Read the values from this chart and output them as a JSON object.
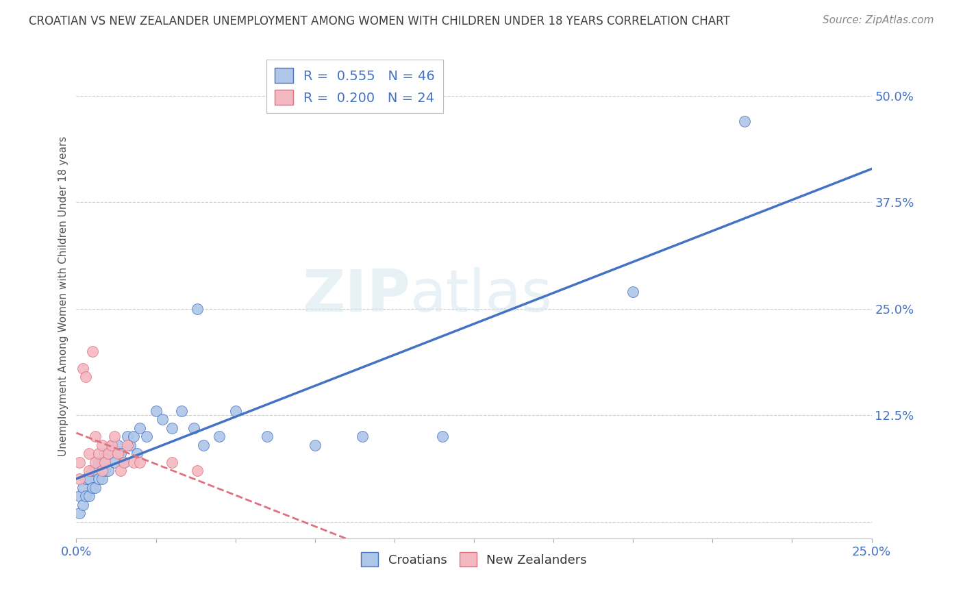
{
  "title": "CROATIAN VS NEW ZEALANDER UNEMPLOYMENT AMONG WOMEN WITH CHILDREN UNDER 18 YEARS CORRELATION CHART",
  "source": "Source: ZipAtlas.com",
  "ylabel": "Unemployment Among Women with Children Under 18 years",
  "xlim": [
    0.0,
    0.25
  ],
  "ylim": [
    -0.02,
    0.55
  ],
  "xticks": [
    0.0,
    0.025,
    0.05,
    0.075,
    0.1,
    0.125,
    0.15,
    0.175,
    0.2,
    0.225,
    0.25
  ],
  "xtick_labels": [
    "0.0%",
    "",
    "",
    "",
    "",
    "",
    "",
    "",
    "",
    "",
    "25.0%"
  ],
  "ytick_positions": [
    0.0,
    0.125,
    0.25,
    0.375,
    0.5
  ],
  "ytick_labels": [
    "",
    "12.5%",
    "25.0%",
    "37.5%",
    "50.0%"
  ],
  "croatian_R": 0.555,
  "croatian_N": 46,
  "nz_R": 0.2,
  "nz_N": 24,
  "croatian_color": "#aec6e8",
  "nz_color": "#f4b8c1",
  "trendline_croatian_color": "#4472c4",
  "trendline_nz_color": "#e07080",
  "watermark_zip": "ZIP",
  "watermark_atlas": "atlas",
  "title_color": "#404040",
  "axis_color": "#4472c4",
  "legend_text_color": "#4472c4",
  "croatian_x": [
    0.001,
    0.002,
    0.002,
    0.003,
    0.004,
    0.004,
    0.005,
    0.005,
    0.006,
    0.006,
    0.007,
    0.007,
    0.008,
    0.008,
    0.009,
    0.009,
    0.01,
    0.01,
    0.011,
    0.012,
    0.013,
    0.014,
    0.015,
    0.015,
    0.016,
    0.017,
    0.018,
    0.019,
    0.02,
    0.022,
    0.025,
    0.027,
    0.03,
    0.032,
    0.035,
    0.04,
    0.042,
    0.045,
    0.05,
    0.055,
    0.065,
    0.075,
    0.09,
    0.11,
    0.175,
    0.21
  ],
  "croatian_y": [
    0.01,
    0.02,
    0.03,
    0.02,
    0.03,
    0.04,
    0.03,
    0.05,
    0.04,
    0.06,
    0.04,
    0.06,
    0.05,
    0.07,
    0.05,
    0.08,
    0.06,
    0.08,
    0.09,
    0.07,
    0.09,
    0.08,
    0.06,
    0.1,
    0.09,
    0.1,
    0.08,
    0.11,
    0.1,
    0.09,
    0.12,
    0.13,
    0.11,
    0.12,
    0.13,
    0.08,
    0.1,
    0.09,
    0.13,
    0.09,
    0.1,
    0.09,
    0.1,
    0.09,
    0.27,
    0.46
  ],
  "nz_x": [
    0.001,
    0.002,
    0.003,
    0.004,
    0.005,
    0.006,
    0.007,
    0.008,
    0.009,
    0.01,
    0.011,
    0.012,
    0.013,
    0.014,
    0.015,
    0.016,
    0.017,
    0.018,
    0.02,
    0.022,
    0.025,
    0.03,
    0.035,
    0.045
  ],
  "nz_y": [
    0.02,
    0.04,
    0.05,
    0.06,
    0.05,
    0.07,
    0.08,
    0.07,
    0.09,
    0.08,
    0.09,
    0.1,
    0.08,
    0.06,
    0.07,
    0.09,
    0.11,
    0.1,
    0.07,
    0.08,
    0.06,
    0.07,
    0.05,
    0.08
  ],
  "nz_extra_x": [
    0.0,
    0.002,
    0.003,
    0.005,
    0.007,
    0.008,
    0.01,
    0.012
  ],
  "nz_extra_y": [
    0.05,
    0.18,
    0.17,
    0.2,
    0.16,
    0.1,
    0.09,
    0.14
  ]
}
